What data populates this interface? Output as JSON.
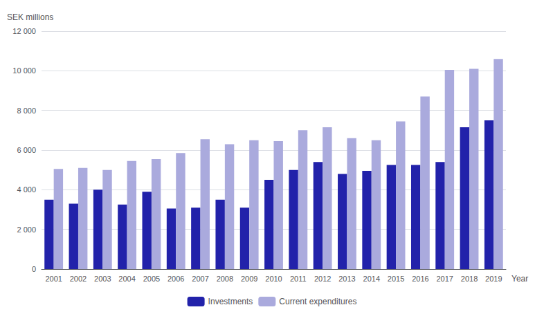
{
  "chart_data": {
    "type": "bar",
    "ylabel": "SEK millions",
    "xlabel": "Year",
    "categories": [
      "2001",
      "2002",
      "2003",
      "2004",
      "2005",
      "2006",
      "2007",
      "2008",
      "2009",
      "2010",
      "2011",
      "2012",
      "2013",
      "2014",
      "2015",
      "2016",
      "2017",
      "2018",
      "2019"
    ],
    "series": [
      {
        "name": "Investments",
        "color": "#2222aa",
        "values": [
          3500,
          3300,
          4000,
          3250,
          3900,
          3050,
          3100,
          3500,
          3100,
          4500,
          5000,
          5400,
          4800,
          4950,
          5250,
          5250,
          5400,
          7150,
          7500
        ]
      },
      {
        "name": "Current expenditures",
        "color": "#aaaadd",
        "values": [
          5050,
          5100,
          5000,
          5450,
          5550,
          5850,
          6550,
          6300,
          6500,
          6450,
          7000,
          7150,
          6600,
          6500,
          7450,
          8700,
          10050,
          10100,
          10600
        ]
      }
    ],
    "ylim": [
      0,
      12000
    ],
    "yticks": [
      0,
      {
        "value": 2000,
        "label": "2 000"
      },
      {
        "value": 4000,
        "label": "4 000"
      },
      {
        "value": 6000,
        "label": "6 000"
      },
      {
        "value": 8000,
        "label": "8 000"
      },
      {
        "value": 10000,
        "label": "10 000"
      },
      {
        "value": 12000,
        "label": "12 000"
      }
    ],
    "grid": true,
    "legend": "bottom"
  }
}
